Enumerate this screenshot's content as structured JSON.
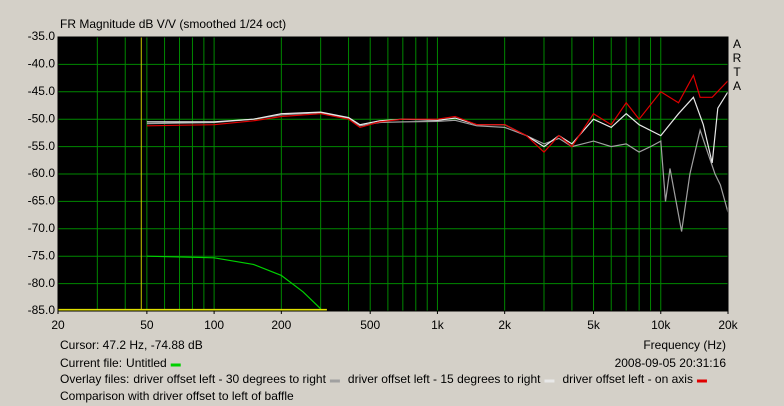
{
  "chart_data": {
    "type": "line",
    "title": "FR Magnitude dB V/V (smoothed 1/24 oct)",
    "brand": [
      "A",
      "R",
      "T",
      "A"
    ],
    "x_label": "Frequency (Hz)",
    "log_x": true,
    "xlim": [
      20,
      20000
    ],
    "ylim": [
      -85,
      -35
    ],
    "xticks": [
      20,
      50,
      100,
      200,
      500,
      {
        "value": 1000,
        "label": "1k"
      },
      {
        "value": 2000,
        "label": "2k"
      },
      {
        "value": 5000,
        "label": "5k"
      },
      {
        "value": 10000,
        "label": "10k"
      },
      {
        "value": 20000,
        "label": "20k"
      }
    ],
    "xgrid": [
      30,
      40,
      50,
      60,
      70,
      80,
      90,
      100,
      200,
      300,
      400,
      500,
      600,
      700,
      800,
      900,
      1000,
      2000,
      3000,
      4000,
      5000,
      6000,
      7000,
      8000,
      9000,
      10000
    ],
    "yticks": [
      {
        "value": -35,
        "label": "-35.0"
      },
      {
        "value": -40,
        "label": "-40.0"
      },
      {
        "value": -45,
        "label": "-45.0"
      },
      {
        "value": -50,
        "label": "-50.0"
      },
      {
        "value": -55,
        "label": "-55.0"
      },
      {
        "value": -60,
        "label": "-60.0"
      },
      {
        "value": -65,
        "label": "-65.0"
      },
      {
        "value": -70,
        "label": "-70.0"
      },
      {
        "value": -75,
        "label": "-75.0"
      },
      {
        "value": -80,
        "label": "-80.0"
      },
      {
        "value": -85,
        "label": "-85.0"
      }
    ],
    "grid": true,
    "cursor": {
      "label": "Cursor: 47.2 Hz, -74.88 dB",
      "x": 47.2,
      "color": "#c8c800"
    },
    "current_file_label": "Current file:",
    "overlay_label": "Overlay files:",
    "timestamp": "2008-09-05  20:31:16",
    "comment": "Comparison with driver offset to left of baffle",
    "series": [
      {
        "name": "driver offset left - 30 degrees to right",
        "color": "#a0a0a0",
        "group": "overlay",
        "x": [
          50,
          100,
          150,
          200,
          300,
          400,
          450,
          550,
          700,
          1000,
          1200,
          1500,
          2000,
          2500,
          3000,
          3500,
          4000,
          5000,
          6000,
          7000,
          8000,
          9000,
          10000,
          10500,
          11000,
          12400,
          13500,
          15000,
          17500,
          18500,
          20000
        ],
        "values": [
          -50.8,
          -50.6,
          -50.0,
          -49.2,
          -48.8,
          -49.8,
          -51.2,
          -50.6,
          -50.5,
          -50.4,
          -50.2,
          -51.2,
          -51.5,
          -53.0,
          -54.5,
          -53.5,
          -55.0,
          -54.0,
          -55.0,
          -54.5,
          -56.0,
          -55.0,
          -54.0,
          -65.0,
          -59.0,
          -70.5,
          -60.0,
          -52.0,
          -60.0,
          -62.0,
          -67.0
        ]
      },
      {
        "name": "driver offset left - 15 degrees to right",
        "color": "#e8e8e8",
        "group": "overlay",
        "x": [
          50,
          100,
          150,
          200,
          300,
          400,
          450,
          550,
          700,
          1000,
          1200,
          1500,
          2000,
          2500,
          3000,
          3500,
          4000,
          5000,
          6000,
          7000,
          8000,
          10000,
          12000,
          14000,
          15500,
          17000,
          18000,
          20000
        ],
        "values": [
          -50.5,
          -50.5,
          -50.0,
          -49.0,
          -48.7,
          -49.7,
          -51.0,
          -50.3,
          -50.0,
          -50.2,
          -49.8,
          -51.0,
          -51.0,
          -53.0,
          -55.0,
          -53.0,
          -54.5,
          -50.0,
          -51.5,
          -49.0,
          -51.0,
          -53.0,
          -49.0,
          -46.0,
          -51.0,
          -58.0,
          -48.0,
          -45.0
        ]
      },
      {
        "name": "driver offset left - on axis",
        "color": "#e00000",
        "group": "overlay",
        "x": [
          50,
          100,
          150,
          200,
          300,
          400,
          450,
          550,
          700,
          1000,
          1200,
          1500,
          2000,
          2500,
          3000,
          3500,
          4000,
          5000,
          6000,
          7000,
          8000,
          10000,
          12000,
          14000,
          15000,
          17000,
          20000
        ],
        "values": [
          -51.2,
          -51.0,
          -50.3,
          -49.5,
          -49.0,
          -50.0,
          -51.5,
          -50.5,
          -50.0,
          -50.0,
          -49.5,
          -51.0,
          -51.0,
          -53.0,
          -56.0,
          -53.0,
          -55.0,
          -49.0,
          -51.0,
          -47.0,
          -50.0,
          -45.0,
          -47.0,
          -42.0,
          -46.0,
          -46.0,
          -43.0
        ]
      },
      {
        "name": "Untitled",
        "color": "#00d000",
        "group": "current",
        "x": [
          50,
          100,
          150,
          200,
          250,
          300
        ],
        "values": [
          -75.0,
          -75.3,
          -76.5,
          -78.5,
          -81.5,
          -84.6
        ]
      },
      {
        "color": "#e0e000",
        "x": [
          20,
          320
        ],
        "values": [
          -84.8,
          -84.8
        ]
      }
    ]
  }
}
